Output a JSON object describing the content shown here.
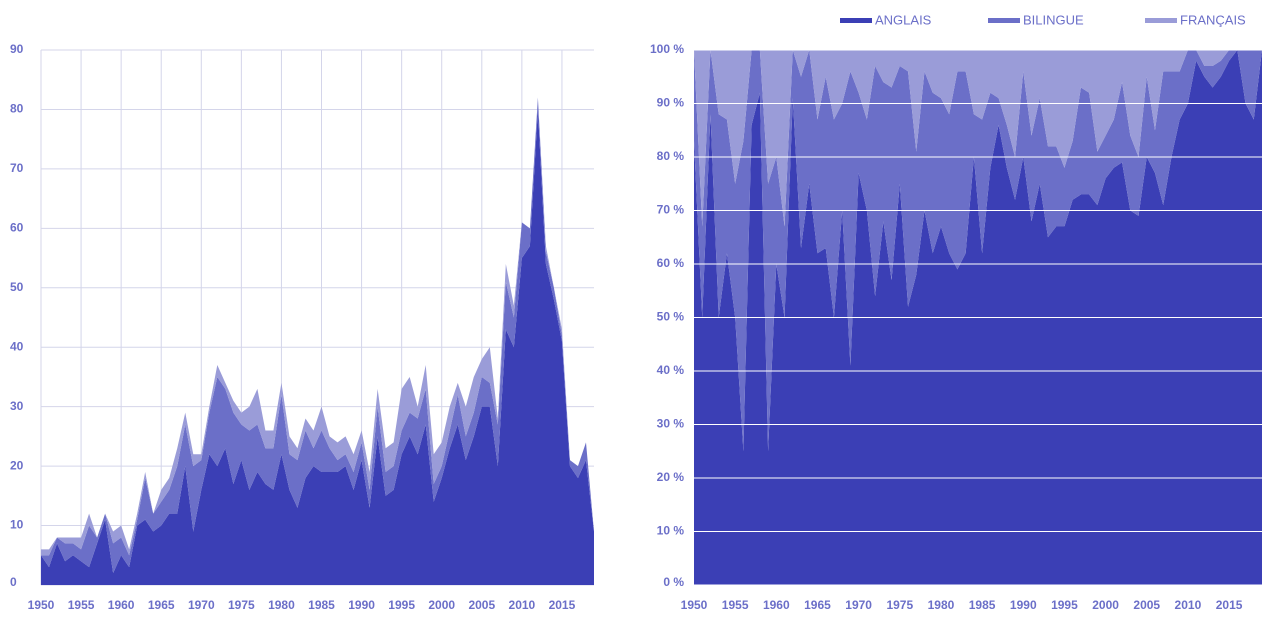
{
  "chart_data": [
    {
      "type": "area",
      "stacked": true,
      "x": [
        1950,
        1951,
        1952,
        1953,
        1954,
        1955,
        1956,
        1957,
        1958,
        1959,
        1960,
        1961,
        1962,
        1963,
        1964,
        1965,
        1966,
        1967,
        1968,
        1969,
        1970,
        1971,
        1972,
        1973,
        1974,
        1975,
        1976,
        1977,
        1978,
        1979,
        1980,
        1981,
        1982,
        1983,
        1984,
        1985,
        1986,
        1987,
        1988,
        1989,
        1990,
        1991,
        1992,
        1993,
        1994,
        1995,
        1996,
        1997,
        1998,
        1999,
        2000,
        2001,
        2002,
        2003,
        2004,
        2005,
        2006,
        2007,
        2008,
        2009,
        2010,
        2011,
        2012,
        2013,
        2014,
        2015,
        2016,
        2017,
        2018,
        2019
      ],
      "xlim": [
        1950,
        2019
      ],
      "xticks": [
        1950,
        1955,
        1960,
        1965,
        1970,
        1975,
        1980,
        1985,
        1990,
        1995,
        2000,
        2005,
        2010,
        2015
      ],
      "ylim": [
        0,
        90
      ],
      "yticks": [
        0,
        10,
        20,
        30,
        40,
        50,
        60,
        70,
        80,
        90
      ],
      "grid": "both",
      "series": [
        {
          "color": "#3b3fb5",
          "values": [
            5,
            3,
            7,
            4,
            5,
            4,
            3,
            7,
            11,
            2,
            5,
            3,
            10,
            11,
            9,
            10,
            12,
            12,
            20,
            9,
            16,
            22,
            20,
            23,
            17,
            21,
            16,
            19,
            17,
            16,
            22,
            16,
            13,
            18,
            20,
            19,
            19,
            19,
            20,
            16,
            21,
            13,
            25,
            15,
            16,
            22,
            25,
            22,
            27,
            14,
            18,
            23,
            27,
            21,
            25,
            30,
            30,
            20,
            43,
            40,
            55,
            57,
            80,
            54,
            48,
            41,
            20,
            18,
            21,
            9
          ]
        },
        {
          "color": "#6b6fc8",
          "values": [
            0,
            2,
            1,
            3,
            2,
            2,
            7,
            1,
            1,
            5,
            3,
            2,
            1,
            7,
            3,
            4,
            4,
            8,
            7,
            11,
            5,
            7,
            15,
            10,
            12,
            6,
            10,
            8,
            6,
            7,
            10,
            6,
            8,
            8,
            3,
            7,
            4,
            2,
            2,
            3,
            3,
            3,
            5,
            4,
            4,
            4,
            4,
            6,
            6,
            3,
            2,
            3,
            5,
            4,
            4,
            5,
            4,
            7,
            8,
            5,
            6,
            3,
            2,
            2,
            2,
            1,
            1,
            2,
            3,
            0
          ]
        },
        {
          "color": "#9a9cd8",
          "values": [
            1,
            1,
            0,
            1,
            1,
            2,
            2,
            0,
            0,
            2,
            2,
            1,
            1,
            1,
            0,
            2,
            2,
            3,
            2,
            2,
            1,
            1,
            2,
            1,
            2,
            2,
            4,
            6,
            3,
            3,
            2,
            3,
            2,
            2,
            3,
            4,
            2,
            3,
            3,
            3,
            2,
            3,
            3,
            4,
            4,
            7,
            6,
            2,
            4,
            5,
            4,
            4,
            2,
            5,
            6,
            3,
            6,
            1,
            3,
            2,
            0,
            0,
            0,
            1,
            0,
            1,
            0,
            0,
            0,
            0
          ]
        }
      ]
    },
    {
      "type": "area",
      "stacked": true,
      "x": [
        1950,
        1951,
        1952,
        1953,
        1954,
        1955,
        1956,
        1957,
        1958,
        1959,
        1960,
        1961,
        1962,
        1963,
        1964,
        1965,
        1966,
        1967,
        1968,
        1969,
        1970,
        1971,
        1972,
        1973,
        1974,
        1975,
        1976,
        1977,
        1978,
        1979,
        1980,
        1981,
        1982,
        1983,
        1984,
        1985,
        1986,
        1987,
        1988,
        1989,
        1990,
        1991,
        1992,
        1993,
        1994,
        1995,
        1996,
        1997,
        1998,
        1999,
        2000,
        2001,
        2002,
        2003,
        2004,
        2005,
        2006,
        2007,
        2008,
        2009,
        2010,
        2011,
        2012,
        2013,
        2014,
        2015,
        2016,
        2017,
        2018,
        2019
      ],
      "xlim": [
        1950,
        2019
      ],
      "xticks": [
        1950,
        1955,
        1960,
        1965,
        1970,
        1975,
        1980,
        1985,
        1990,
        1995,
        2000,
        2005,
        2010,
        2015
      ],
      "ylim": [
        0,
        100
      ],
      "yticks": [
        {
          "value": 0,
          "label": "0 %"
        },
        {
          "value": 10,
          "label": "10 %"
        },
        {
          "value": 20,
          "label": "20 %"
        },
        {
          "value": 30,
          "label": "30 %"
        },
        {
          "value": 40,
          "label": "40 %"
        },
        {
          "value": 50,
          "label": "50 %"
        },
        {
          "value": 60,
          "label": "60 %"
        },
        {
          "value": 70,
          "label": "70 %"
        },
        {
          "value": 80,
          "label": "80 %"
        },
        {
          "value": 90,
          "label": "90 %"
        },
        {
          "value": 100,
          "label": "100 %"
        }
      ],
      "grid": "y",
      "legend": "top-right",
      "series": [
        {
          "name": "ANGLAIS",
          "color": "#3b3fb5",
          "values": [
            83,
            50,
            88,
            50,
            62,
            50,
            25,
            86,
            92,
            25,
            60,
            50,
            91,
            63,
            75,
            62,
            63,
            50,
            70,
            41,
            77,
            70,
            54,
            68,
            57,
            75,
            52,
            58,
            70,
            62,
            67,
            62,
            59,
            62,
            80,
            62,
            78,
            86,
            78,
            72,
            80,
            68,
            75,
            65,
            67,
            67,
            72,
            73,
            73,
            71,
            76,
            78,
            79,
            70,
            69,
            80,
            77,
            71,
            80,
            87,
            90,
            98,
            95,
            93,
            95,
            98,
            100,
            90,
            87,
            100
          ]
        },
        {
          "name": "BILINGUE",
          "color": "#6b6fc8",
          "values": [
            17,
            17,
            12,
            38,
            25,
            25,
            58,
            14,
            8,
            50,
            20,
            17,
            9,
            32,
            25,
            25,
            32,
            37,
            20,
            55,
            15,
            17,
            43,
            26,
            36,
            22,
            44,
            23,
            26,
            30,
            24,
            26,
            37,
            34,
            8,
            25,
            14,
            5,
            8,
            8,
            16,
            16,
            16,
            17,
            15,
            11,
            11,
            20,
            19,
            10,
            8,
            9,
            15,
            14,
            11,
            15,
            8,
            25,
            16,
            9,
            10,
            2,
            2,
            4,
            3,
            2,
            0,
            10,
            13,
            0
          ]
        },
        {
          "name": "FRANÇAIS",
          "color": "#9a9cd8",
          "values": [
            0,
            33,
            0,
            12,
            13,
            25,
            17,
            0,
            0,
            25,
            20,
            33,
            0,
            5,
            0,
            13,
            5,
            13,
            10,
            4,
            8,
            13,
            3,
            6,
            7,
            3,
            4,
            19,
            4,
            8,
            9,
            12,
            4,
            4,
            12,
            13,
            8,
            9,
            14,
            20,
            4,
            16,
            9,
            18,
            18,
            22,
            17,
            7,
            8,
            19,
            16,
            13,
            6,
            16,
            20,
            5,
            15,
            4,
            4,
            4,
            0,
            0,
            3,
            3,
            2,
            0,
            0,
            0,
            0,
            0
          ]
        }
      ]
    }
  ]
}
